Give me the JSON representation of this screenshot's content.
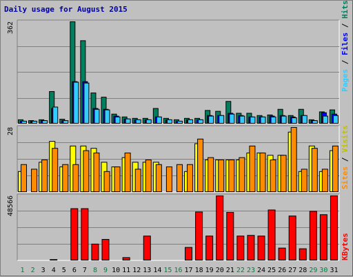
{
  "chart_data": {
    "title": "Daily usage for August 2015",
    "type": "bar",
    "categories": [
      "1",
      "2",
      "3",
      "4",
      "5",
      "6",
      "7",
      "8",
      "9",
      "10",
      "11",
      "12",
      "13",
      "14",
      "15",
      "16",
      "17",
      "18",
      "19",
      "20",
      "21",
      "22",
      "23",
      "24",
      "25",
      "26",
      "27",
      "28",
      "29",
      "30",
      "31"
    ],
    "weekend_days": [
      "1",
      "2",
      "8",
      "9",
      "15",
      "16",
      "22",
      "23",
      "29",
      "30"
    ],
    "panels": [
      {
        "id": "hits-files-pages",
        "ymax_label": "362",
        "ymax": 362,
        "legend": [
          "Pages",
          "Files",
          "Hits"
        ],
        "series": [
          {
            "name": "Hits",
            "color": "#007f5f",
            "values": [
              15,
              12,
              15,
              115,
              17,
              362,
              295,
              110,
              95,
              35,
              25,
              20,
              20,
              55,
              20,
              15,
              20,
              20,
              48,
              45,
              80,
              38,
              38,
              30,
              32,
              52,
              30,
              52,
              15,
              43,
              50
            ]
          },
          {
            "name": "Files",
            "color": "#0000ff",
            "values": [
              10,
              10,
              12,
              55,
              12,
              150,
              150,
              55,
              52,
              28,
              18,
              15,
              15,
              25,
              15,
              10,
              15,
              15,
              30,
              30,
              38,
              30,
              25,
              25,
              28,
              30,
              25,
              30,
              12,
              40,
              35
            ]
          },
          {
            "name": "Pages",
            "color": "#33ccff",
            "values": [
              10,
              10,
              12,
              60,
              12,
              148,
              145,
              52,
              50,
              25,
              18,
              15,
              15,
              25,
              15,
              10,
              15,
              15,
              28,
              30,
              35,
              28,
              25,
              25,
              25,
              28,
              22,
              30,
              12,
              28,
              30
            ]
          }
        ]
      },
      {
        "id": "visits-sites",
        "ymax_label": "28",
        "ymax": 28,
        "legend": [
          "Sites",
          "/",
          "Visits"
        ],
        "series": [
          {
            "name": "Visits",
            "color": "#ffff00",
            "values": [
              9,
              0,
              13,
              22,
              11,
              20,
              20,
              19,
              13,
              11,
              15,
              13,
              13,
              13,
              0,
              0,
              9,
              21,
              14,
              14,
              14,
              14,
              17,
              17,
              16,
              16,
              26,
              9,
              20,
              9,
              18
            ]
          },
          {
            "name": "Sites",
            "color": "#ff8c00",
            "values": [
              12,
              10,
              14,
              19,
              12,
              12,
              18,
              17,
              9,
              11,
              17,
              10,
              14,
              12,
              11,
              12,
              12,
              23,
              15,
              14,
              14,
              15,
              20,
              17,
              14,
              16,
              28,
              10,
              19,
              10,
              20
            ]
          }
        ]
      },
      {
        "id": "kbytes",
        "ymax_label": "48566",
        "ymax": 48566,
        "legend": [
          "KBytes"
        ],
        "series": [
          {
            "name": "KBytes",
            "color": "#ff0000",
            "values": [
              400,
              400,
              400,
              900,
              400,
              39000,
              39000,
              12500,
              16000,
              400,
              2400,
              400,
              18500,
              400,
              400,
              400,
              10000,
              36500,
              18500,
              48566,
              36200,
              18500,
              19000,
              18500,
              38000,
              9500,
              33500,
              9000,
              37000,
              34500,
              48566
            ]
          }
        ]
      }
    ]
  },
  "colors": {
    "background": "#c0c0c0",
    "panel_bg": "#c0c0c0",
    "grid": "#808080",
    "title": "#0000a0",
    "hits": "#007f5f",
    "files": "#0000ff",
    "pages": "#33ccff",
    "visits": "#ffff00",
    "sites": "#ff8c00",
    "kbytes": "#ff0000",
    "weekday_label": "#000000",
    "weekend_label": "#008040"
  }
}
